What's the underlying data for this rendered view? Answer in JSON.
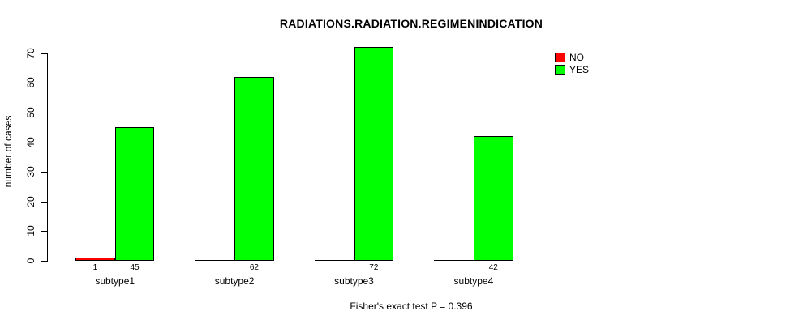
{
  "chart_data": {
    "type": "bar",
    "title": "RADIATIONS.RADIATION.REGIMENINDICATION",
    "ylabel": "number of cases",
    "xlabel": "",
    "categories": [
      "subtype1",
      "subtype2",
      "subtype3",
      "subtype4"
    ],
    "series": [
      {
        "name": "NO",
        "color": "#ff0000",
        "values": [
          1,
          0,
          0,
          0
        ]
      },
      {
        "name": "YES",
        "color": "#00ff00",
        "values": [
          45,
          62,
          72,
          42
        ]
      }
    ],
    "bar_value_labels": [
      "1",
      "45",
      "62",
      "72",
      "42"
    ],
    "yticks": [
      0,
      10,
      20,
      30,
      40,
      50,
      60,
      70
    ],
    "ylim": [
      0,
      70
    ],
    "grid": false,
    "legend_position": "top-right",
    "legend_entries": [
      "NO",
      "YES"
    ],
    "annotation": "Fisher's exact test P = 0.396"
  }
}
